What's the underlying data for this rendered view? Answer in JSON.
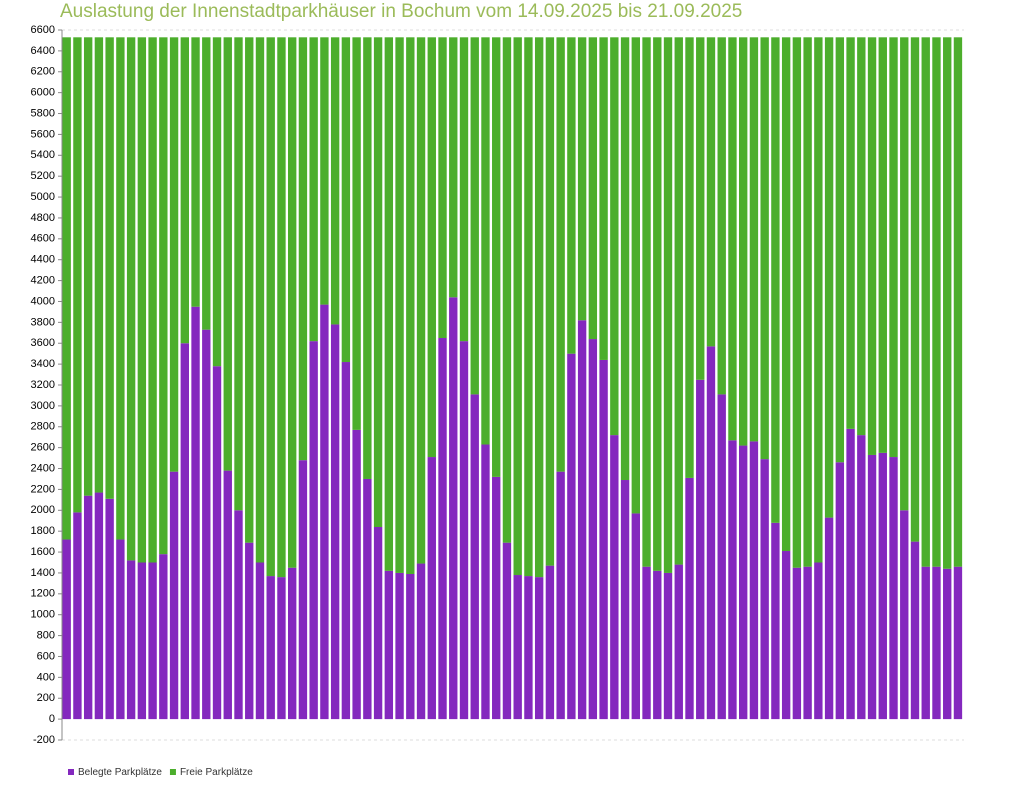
{
  "chart_data": {
    "type": "stacked_bar",
    "title": "Auslastung der Innenstadtparkhäuser in Bochum vom 14.09.2025 bis 21.09.2025",
    "categories": [
      null,
      null,
      null,
      null,
      null,
      null,
      null,
      null,
      null,
      null,
      null,
      null,
      null,
      null,
      null,
      null,
      null,
      null,
      null,
      null,
      null,
      null,
      null,
      null,
      null,
      null,
      null,
      null,
      null,
      null,
      null,
      null,
      null,
      null,
      null,
      null,
      null,
      null,
      null,
      null,
      null,
      null,
      null,
      null,
      null,
      null,
      null,
      null,
      null,
      null,
      null,
      null,
      null,
      null,
      null,
      null,
      null,
      null,
      null,
      null,
      null,
      null,
      null,
      null,
      null,
      null,
      null,
      null,
      null,
      null,
      null,
      null,
      null,
      null,
      null,
      null,
      null,
      null,
      null,
      null,
      null,
      null,
      null,
      null
    ],
    "series": [
      {
        "name": "Belegte Parkplätze",
        "color": "#8428be",
        "values": [
          1720,
          1980,
          2140,
          2170,
          2110,
          1720,
          1520,
          1500,
          1500,
          1580,
          2370,
          3600,
          3950,
          3730,
          3380,
          2380,
          2000,
          1690,
          1500,
          1370,
          1360,
          1450,
          2480,
          3620,
          3970,
          3780,
          3420,
          2770,
          2300,
          1840,
          1420,
          1400,
          1390,
          1490,
          2510,
          3650,
          4040,
          3620,
          3110,
          2630,
          2320,
          1690,
          1380,
          1370,
          1360,
          1470,
          2370,
          3500,
          3820,
          3640,
          3440,
          2720,
          2290,
          1970,
          1460,
          1420,
          1400,
          1480,
          2310,
          3250,
          3570,
          3110,
          2670,
          2620,
          2660,
          2490,
          1880,
          1610,
          1450,
          1460,
          1500,
          1930,
          2460,
          2780,
          2720,
          2530,
          2550,
          2510,
          2000,
          1700,
          1460,
          1460,
          1440,
          1460
        ]
      },
      {
        "name": "Freie Parkplätze",
        "color": "#4cae2c",
        "values": [
          4810,
          4550,
          4390,
          4360,
          4420,
          4810,
          5010,
          5030,
          5030,
          4950,
          4160,
          2930,
          2580,
          2800,
          3150,
          4150,
          4530,
          4840,
          5030,
          5160,
          5170,
          5080,
          4050,
          2910,
          2560,
          2750,
          3110,
          3760,
          4230,
          4690,
          5110,
          5130,
          5140,
          5040,
          4020,
          2880,
          2490,
          2910,
          3420,
          3900,
          4210,
          4840,
          5150,
          5160,
          5170,
          5060,
          4160,
          3030,
          2710,
          2890,
          3090,
          3810,
          4240,
          4560,
          5070,
          5110,
          5130,
          5050,
          4220,
          3280,
          2960,
          3420,
          3860,
          3910,
          3870,
          4040,
          4650,
          4920,
          5080,
          5070,
          5030,
          4600,
          4070,
          3750,
          3810,
          4000,
          3980,
          4020,
          4530,
          4830,
          5070,
          5070,
          5090,
          5070
        ]
      }
    ],
    "ylim": [
      -200,
      6600
    ],
    "yticks": [
      -200,
      0,
      200,
      400,
      600,
      800,
      1000,
      1200,
      1400,
      1600,
      1800,
      2000,
      2200,
      2400,
      2600,
      2800,
      3000,
      3200,
      3400,
      3600,
      3800,
      4000,
      4200,
      4400,
      4600,
      4800,
      5000,
      5200,
      5400,
      5600,
      5800,
      6000,
      6200,
      6400,
      6600
    ],
    "grid": false,
    "legend": "bottom-left"
  }
}
